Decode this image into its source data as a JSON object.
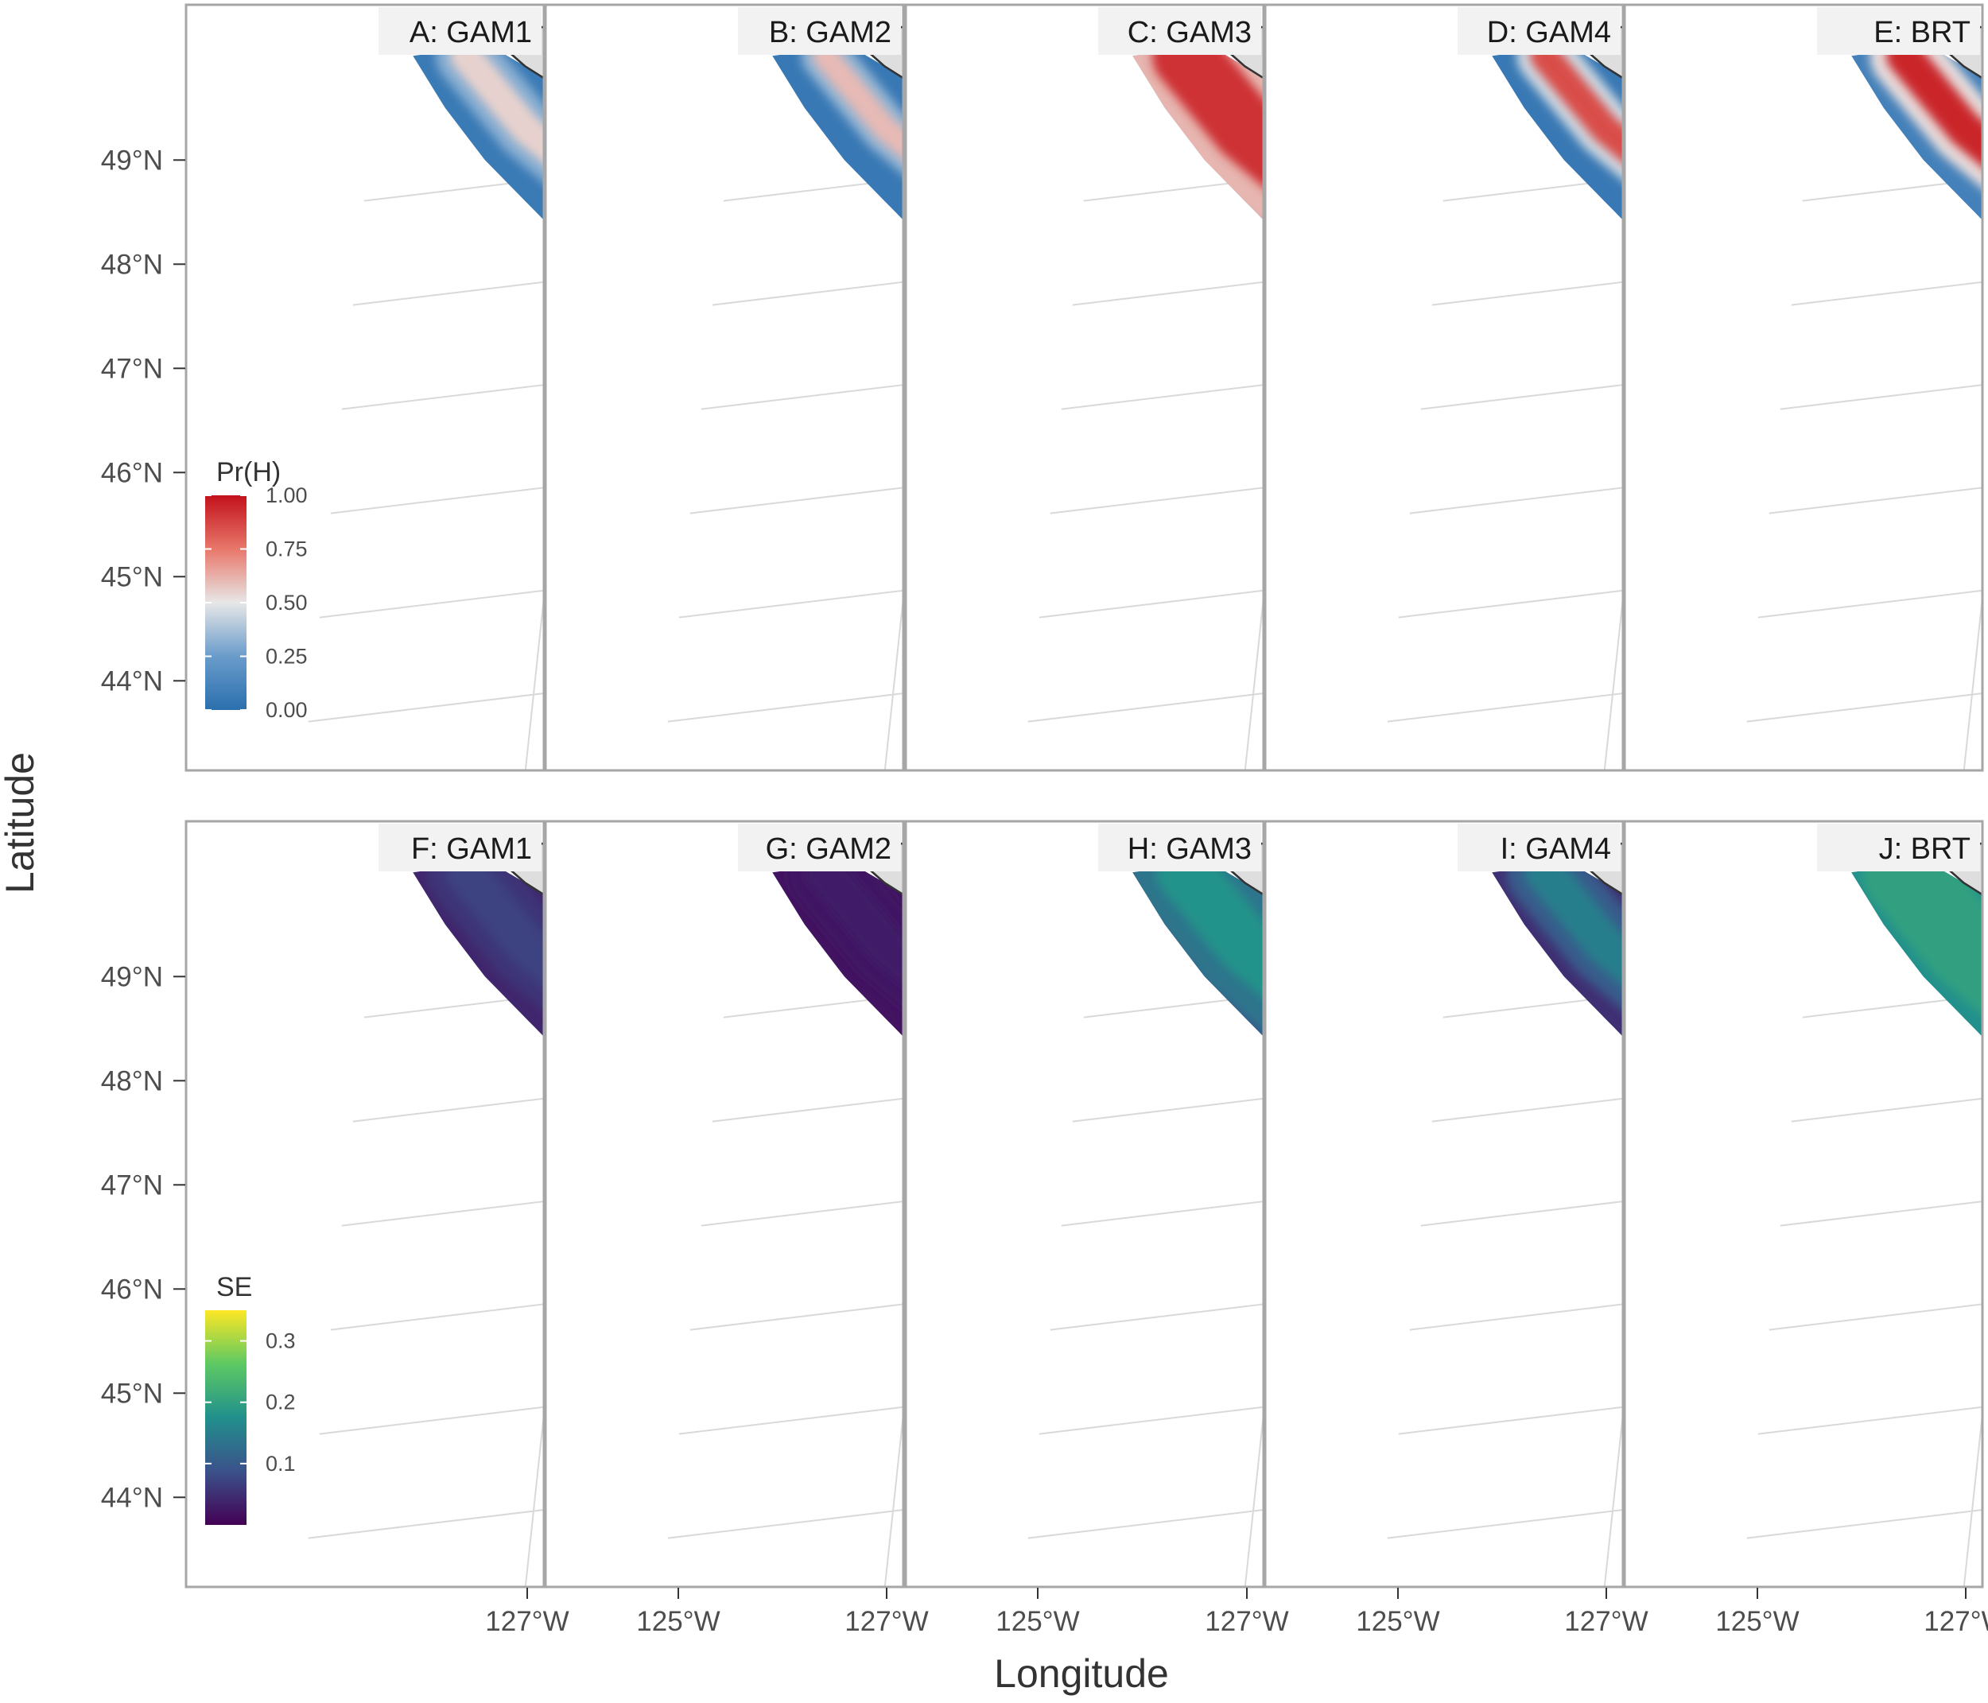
{
  "chart_data": {
    "type": "heatmap",
    "xlabel": "Longitude",
    "ylabel": "Latitude",
    "x_ticks": [
      "127°W",
      "125°W"
    ],
    "y_ticks": [
      "44°N",
      "45°N",
      "46°N",
      "47°N",
      "48°N",
      "49°N"
    ],
    "grid": true,
    "rows": [
      {
        "variable": "probability",
        "legend": {
          "title": "Pr(H)",
          "labels": [
            "1.00",
            "0.75",
            "0.50",
            "0.25",
            "0.00"
          ],
          "range": [
            0,
            1
          ],
          "colors": [
            "#2b6fae",
            "#6a9ccb",
            "#e7e7e7",
            "#e8776a",
            "#c2111b"
          ]
        },
        "panels": [
          {
            "label": "A: GAM1",
            "core": 0.55,
            "width": 0.4,
            "base": 0.06
          },
          {
            "label": "B: GAM2",
            "core": 0.6,
            "width": 0.25,
            "base": 0.05
          },
          {
            "label": "C: GAM3",
            "core": 0.92,
            "width": 1.2,
            "base": 0.3
          },
          {
            "label": "D: GAM4",
            "core": 0.85,
            "width": 0.35,
            "base": 0.05
          },
          {
            "label": "E: BRT",
            "core": 0.95,
            "width": 0.5,
            "base": 0.1
          }
        ]
      },
      {
        "variable": "standard_error",
        "legend": {
          "title": "SE",
          "labels": [
            "0.3",
            "0.2",
            "0.1"
          ],
          "range": [
            0,
            0.35
          ],
          "colors": [
            "#440154",
            "#3b528b",
            "#21908c",
            "#5dc963",
            "#fde725"
          ]
        },
        "panels": [
          {
            "label": "F: GAM1",
            "core": 0.07,
            "width": 0.6,
            "base": 0.04
          },
          {
            "label": "G: GAM2",
            "core": 0.03,
            "width": 0.6,
            "base": 0.02
          },
          {
            "label": "H: GAM3",
            "core": 0.18,
            "width": 1.0,
            "base": 0.09
          },
          {
            "label": "I: GAM4",
            "core": 0.15,
            "width": 0.6,
            "base": 0.05
          },
          {
            "label": "J: BRT",
            "core": 0.2,
            "width": 1.6,
            "base": 0.15
          }
        ]
      }
    ]
  }
}
